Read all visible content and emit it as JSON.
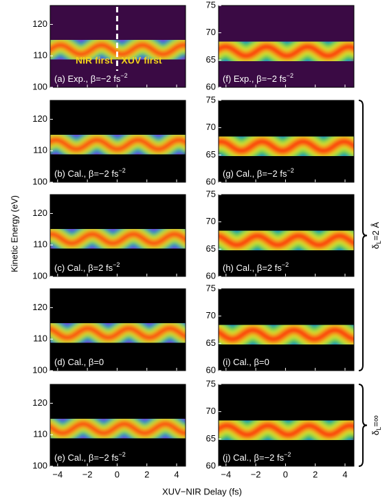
{
  "chart_data": {
    "type": "heatmap",
    "xlabel": "XUV−NIR Delay (fs)",
    "ylabel": "Kinetic Energy (eV)",
    "xlim": [
      -4.5,
      4.6
    ],
    "xticks": [
      {
        "value": -4,
        "label": "−4"
      },
      {
        "value": -2,
        "label": "−2"
      },
      0,
      2,
      4
    ],
    "panels": [
      {
        "label": "(a) Exp., β=−2 fs",
        "label_sup": "−2",
        "ylim": [
          100,
          126
        ],
        "yticks": [
          100,
          110,
          120
        ],
        "background": "#3a0a44",
        "marker_x": 0,
        "annotations": [
          "NIR first",
          "XUV first"
        ]
      },
      {
        "label": "(b) Cal., β=−2 fs",
        "label_sup": "−2",
        "ylim": [
          100,
          126
        ],
        "yticks": [
          100,
          110,
          120
        ],
        "background": "#000000"
      },
      {
        "label": "(c) Cal., β=2 fs",
        "label_sup": "−2",
        "ylim": [
          100,
          126
        ],
        "yticks": [
          100,
          110,
          120
        ],
        "background": "#000000"
      },
      {
        "label": "(d) Cal., β=0",
        "ylim": [
          100,
          126
        ],
        "yticks": [
          100,
          110,
          120
        ],
        "background": "#000000"
      },
      {
        "label": "(e) Cal., β=−2 fs",
        "label_sup": "−2",
        "ylim": [
          100,
          126
        ],
        "yticks": [
          100,
          110,
          120
        ],
        "background": "#000000"
      },
      {
        "label": "(f) Exp., β=−2 fs",
        "label_sup": "−2",
        "ylim": [
          60,
          75
        ],
        "yticks": [
          60,
          65,
          70,
          75
        ],
        "background": "#3a0a44"
      },
      {
        "label": "(g) Cal., β=−2 fs",
        "label_sup": "−2",
        "ylim": [
          60,
          75
        ],
        "yticks": [
          60,
          65,
          70,
          75
        ],
        "background": "#000000"
      },
      {
        "label": "(h) Cal., β=2 fs",
        "label_sup": "−2",
        "ylim": [
          60,
          75
        ],
        "yticks": [
          60,
          65,
          70,
          75
        ],
        "background": "#000000"
      },
      {
        "label": "(i) Cal., β=0",
        "ylim": [
          60,
          75
        ],
        "yticks": [
          60,
          65,
          70,
          75
        ],
        "background": "#000000"
      },
      {
        "label": "(j) Cal., β=−2 fs",
        "label_sup": "−2",
        "ylim": [
          60,
          75
        ],
        "yticks": [
          60,
          65,
          70,
          75
        ],
        "background": "#000000"
      }
    ],
    "groups": [
      {
        "label": "δ",
        "label_sub": "L",
        "label_rest": "=2 Å"
      },
      {
        "label": "δ",
        "label_sub": "L",
        "label_rest": "=∞"
      }
    ]
  }
}
